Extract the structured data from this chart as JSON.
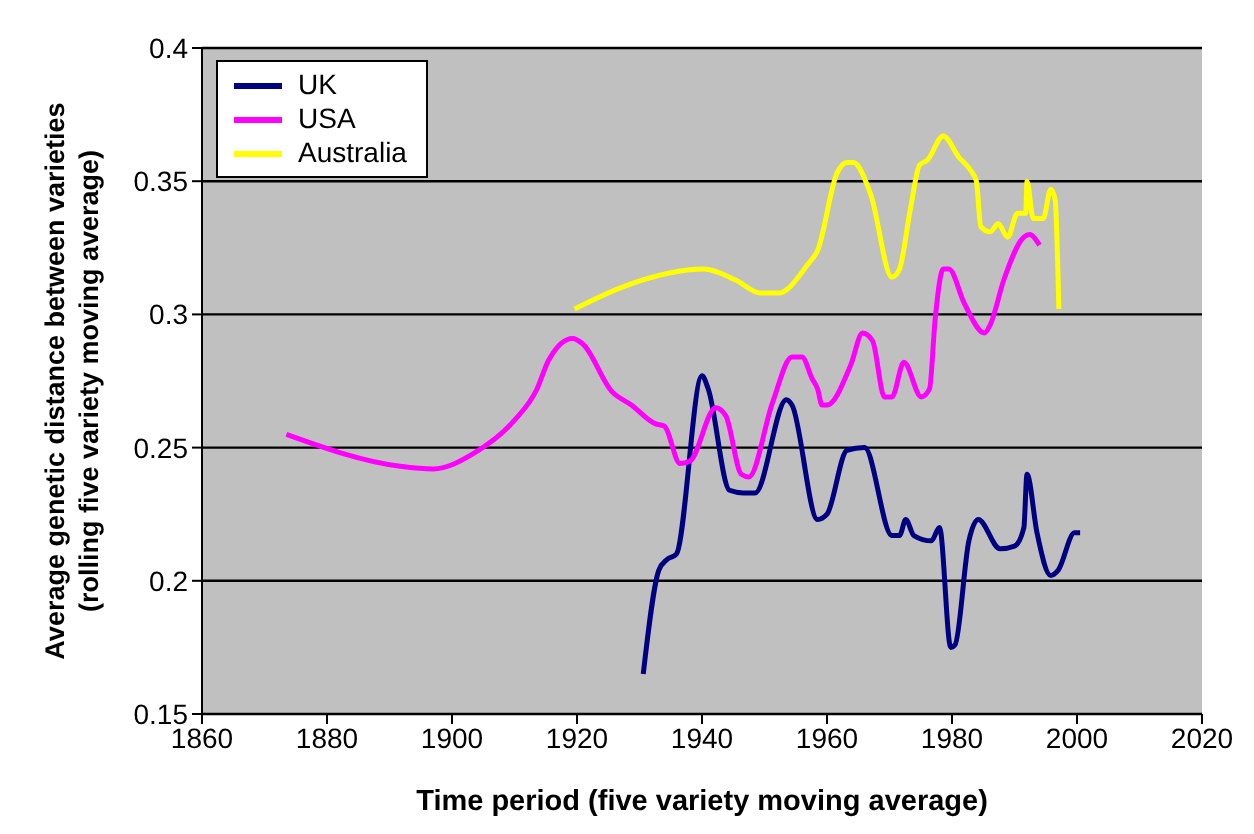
{
  "chart_data": {
    "type": "line",
    "xlabel": "Time period (five variety moving average)",
    "ylabel": "Average genetic distance between varieties (rolling five variety moving average)",
    "xlim": [
      1860,
      2020
    ],
    "xticks": [
      1860,
      1880,
      1900,
      1920,
      1940,
      1960,
      1980,
      2000,
      2020
    ],
    "ylim": [
      0.15,
      0.4
    ],
    "yticks": [
      0.15,
      0.2,
      0.25,
      0.3,
      0.35,
      0.4
    ],
    "grid": "y",
    "legend": "top left",
    "marker": "none",
    "line_style": "solid",
    "series": [
      {
        "name": "UK",
        "color": "#000080",
        "x": [
          1930.6,
          1933.1,
          1934.4,
          1935.9,
          1940,
          1941,
          1944.4,
          1946.6,
          1948.5,
          1953.5,
          1954.4,
          1958.5,
          1960,
          1963.2,
          1966,
          1970.4,
          1971.6,
          1972.6,
          1973.9,
          1976.7,
          1978,
          1979.8,
          1980.5,
          1982.7,
          1984.2,
          1987.7,
          1990,
          1991.5,
          1992,
          1993.6,
          1995.8,
          1997,
          1999.6,
          2000.5
        ],
        "values": [
          0.165,
          0.204,
          0.208,
          0.21,
          0.277,
          0.272,
          0.234,
          0.233,
          0.233,
          0.268,
          0.266,
          0.223,
          0.225,
          0.249,
          0.25,
          0.217,
          0.217,
          0.223,
          0.217,
          0.215,
          0.22,
          0.175,
          0.176,
          0.215,
          0.223,
          0.212,
          0.213,
          0.22,
          0.24,
          0.218,
          0.202,
          0.204,
          0.218,
          0.218
        ]
      },
      {
        "name": "USA",
        "color": "#ff00ff",
        "x": [
          1873.5,
          1891.7,
          1897,
          1903.6,
          1909.9,
          1913.6,
          1915.5,
          1919.3,
          1920.9,
          1925.6,
          1928.7,
          1932.5,
          1934,
          1936.5,
          1938.1,
          1942.2,
          1943.8,
          1946.3,
          1947.5,
          1951.3,
          1954.4,
          1956,
          1957.6,
          1958.5,
          1959.2,
          1960,
          1963.8,
          1965.7,
          1967.3,
          1969.2,
          1970.4,
          1972.3,
          1975.1,
          1976.4,
          1977.3,
          1978.6,
          1979.5,
          1982,
          1985.2,
          1986.1,
          1988.3,
          1991.5,
          1992.4,
          1994
        ],
        "values": [
          0.255,
          0.243,
          0.242,
          0.248,
          0.26,
          0.272,
          0.283,
          0.291,
          0.289,
          0.271,
          0.266,
          0.259,
          0.258,
          0.244,
          0.245,
          0.265,
          0.262,
          0.24,
          0.239,
          0.267,
          0.284,
          0.284,
          0.276,
          0.272,
          0.266,
          0.266,
          0.281,
          0.293,
          0.29,
          0.269,
          0.269,
          0.282,
          0.269,
          0.272,
          0.298,
          0.317,
          0.317,
          0.304,
          0.293,
          0.296,
          0.313,
          0.329,
          0.33,
          0.326
        ]
      },
      {
        "name": "Australia",
        "color": "#ffff00",
        "x": [
          1919.6,
          1928.1,
          1940.3,
          1945.3,
          1949.4,
          1952.2,
          1957,
          1958.5,
          1961.6,
          1963.2,
          1964.2,
          1967,
          1970.4,
          1971.6,
          1973.3,
          1974.8,
          1976.1,
          1978.6,
          1981.1,
          1983,
          1983.9,
          1984.6,
          1986.1,
          1987.4,
          1988.9,
          1990.5,
          1991.8,
          1992,
          1993,
          1994.6,
          1995.8,
          1996.5,
          1997.1
        ],
        "values": [
          0.302,
          0.311,
          0.317,
          0.313,
          0.308,
          0.308,
          0.319,
          0.324,
          0.353,
          0.357,
          0.357,
          0.345,
          0.314,
          0.317,
          0.339,
          0.356,
          0.358,
          0.367,
          0.359,
          0.354,
          0.35,
          0.333,
          0.331,
          0.334,
          0.329,
          0.338,
          0.338,
          0.35,
          0.336,
          0.336,
          0.347,
          0.343,
          0.302
        ]
      }
    ]
  }
}
